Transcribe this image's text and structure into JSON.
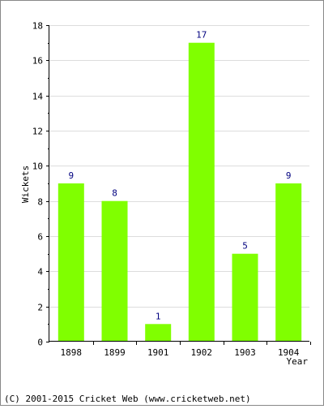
{
  "chart_data": {
    "type": "bar",
    "categories": [
      "1898",
      "1899",
      "1901",
      "1902",
      "1903",
      "1904"
    ],
    "values": [
      9,
      8,
      1,
      17,
      5,
      9
    ],
    "data_labels": [
      "9",
      "8",
      "1",
      "17",
      "5",
      "9"
    ],
    "title": "",
    "xlabel": "Year",
    "ylabel": "Wickets",
    "ylim": [
      0,
      18
    ],
    "yticks": [
      "0",
      "2",
      "4",
      "6",
      "8",
      "10",
      "12",
      "14",
      "16",
      "18"
    ],
    "grid": true,
    "bar_color": "#80ff00",
    "label_color": "#00007f"
  },
  "footer": {
    "copyright": "(C) 2001-2015 Cricket Web (www.cricketweb.net)"
  }
}
